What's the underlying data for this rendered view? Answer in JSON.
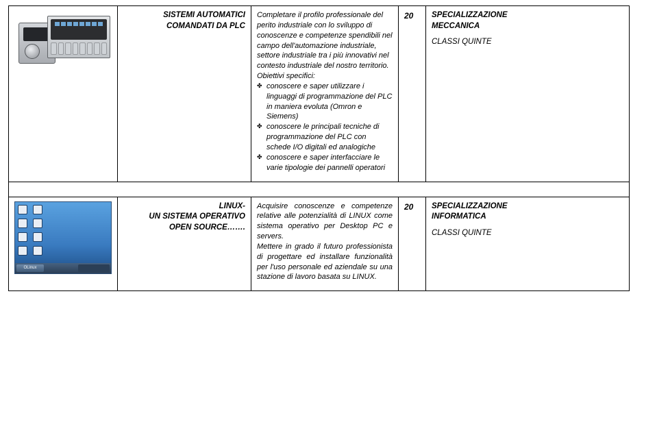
{
  "rows": [
    {
      "title_lines": [
        "SISTEMI AUTOMATICI",
        "COMANDATI DA PLC"
      ],
      "desc_intro": "Completare il profilo professionale del perito industriale con  lo sviluppo di conoscenze e competenze spendibili nel campo dell'automazione industriale, settore industriale tra i più innovativi nel contesto industriale del nostro territorio.",
      "desc_obj_label": "Obiettivi specifici:",
      "desc_bullets": [
        "conoscere e saper utilizzare i linguaggi di programmazione del PLC in maniera evoluta (Omron e Siemens)",
        "conoscere le principali tecniche di programmazione del PLC con schede I/O digitali ed analogiche",
        "conoscere e saper interfacciare le varie tipologie dei pannelli operatori"
      ],
      "n": "20",
      "spec_head_lines": [
        "SPECIALIZZAZIONE",
        "MECCANICA"
      ],
      "spec_sub": "CLASSI QUINTE"
    },
    {
      "title_lines": [
        "LINUX-",
        "UN SISTEMA OPERATIVO",
        "OPEN SOURCE……."
      ],
      "desc_main": "Acquisire conoscenze e competenze relative alle potenzialità di LINUX come sistema operativo per Desktop PC e servers.",
      "desc_extra": "Mettere in grado il futuro professionista di progettare ed installare funzionalità per l'uso personale ed aziendale su una stazione di lavoro basata su LINUX.",
      "n": "20",
      "spec_head_lines": [
        "SPECIALIZZAZIONE",
        "INFORMATICA"
      ],
      "spec_sub": "CLASSI QUINTE"
    }
  ],
  "linux_start_label": "OLinux"
}
